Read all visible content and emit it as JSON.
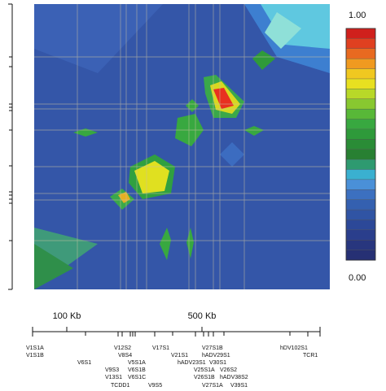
{
  "colorbar": {
    "max_label": "1.00",
    "min_label": "0.00"
  },
  "map": {
    "scale_labels": [
      "100 Kb",
      "500 Kb"
    ],
    "genes": [
      "V1S1A",
      "V1S1B",
      "V6S1",
      "V12S2",
      "V8S4",
      "V5S1A",
      "V6S1B",
      "V6S1C",
      "V9S3",
      "V13S1",
      "TCDD1",
      "V9S5",
      "V17S1",
      "V21S1",
      "hADV23S1",
      "V27S1B",
      "hADV29S1",
      "V30S1",
      "V25S1A",
      "V26S1B",
      "V27S1A",
      "V26S2",
      "hADV38S2",
      "V39S1",
      "hDV102S1",
      "TCR1"
    ]
  }
}
